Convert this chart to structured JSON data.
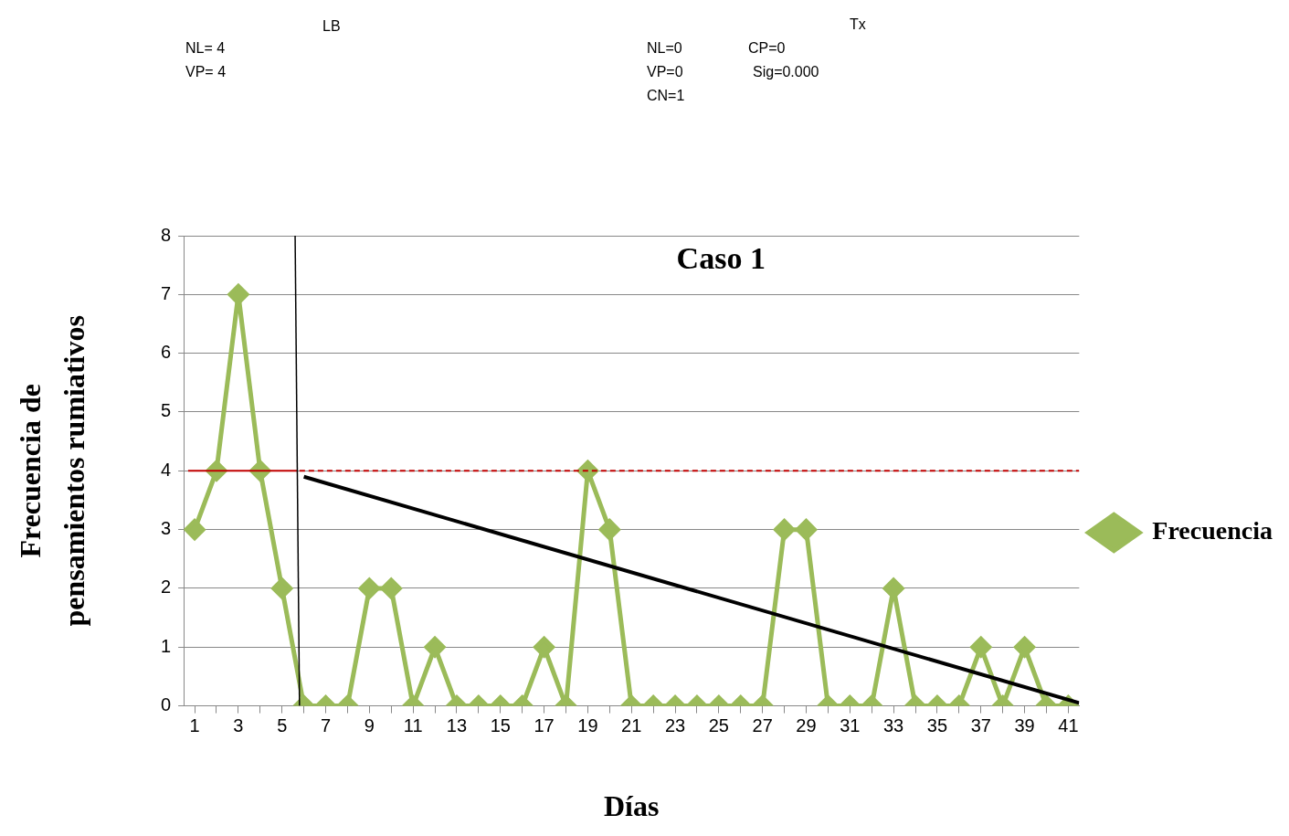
{
  "chart_data": {
    "type": "line",
    "title": "Caso 1",
    "xlabel": "Días",
    "ylabel": "Frecuencia de pensamientos rumiativos",
    "annotations": [
      "LB",
      "NL= 4",
      "VP= 4",
      "Tx",
      "NL=0",
      "CP=0",
      "VP=0",
      "Sig=0.000",
      "CN=1"
    ],
    "x": [
      1,
      2,
      3,
      4,
      5,
      6,
      7,
      8,
      9,
      10,
      11,
      12,
      13,
      14,
      15,
      16,
      17,
      18,
      19,
      20,
      21,
      22,
      23,
      24,
      25,
      26,
      27,
      28,
      29,
      30,
      31,
      32,
      33,
      34,
      35,
      36,
      37,
      38,
      39,
      40,
      41
    ],
    "series": [
      {
        "name": "Frecuencia",
        "color": "#9bbb59",
        "marker": "diamond",
        "values": [
          3,
          4,
          7,
          4,
          2,
          0,
          0,
          0,
          2,
          2,
          0,
          1,
          0,
          0,
          0,
          0,
          1,
          0,
          4,
          3,
          0,
          0,
          0,
          0,
          0,
          0,
          0,
          3,
          3,
          0,
          0,
          0,
          2,
          0,
          0,
          0,
          1,
          0,
          1,
          0,
          0
        ]
      },
      {
        "type": "line",
        "color": "#000000",
        "x": [
          5.6,
          5.8
        ],
        "values": [
          8,
          0
        ],
        "line_style": "solid"
      },
      {
        "type": "line",
        "color": "#c00000",
        "x": [
          0.7,
          5.7
        ],
        "values": [
          4,
          4
        ],
        "line_style": "solid"
      },
      {
        "type": "line",
        "color": "#c00000",
        "x": [
          5.8,
          41.5
        ],
        "values": [
          4,
          4
        ],
        "line_style": "dashed"
      },
      {
        "type": "line",
        "color": "#000000",
        "x": [
          6,
          41.5
        ],
        "values": [
          3.9,
          0.05
        ],
        "line_style": "solid"
      }
    ],
    "xlim": [
      0.5,
      41.5
    ],
    "xticks": [
      1,
      {
        "value": 2,
        "label": null
      },
      3,
      {
        "value": 4,
        "label": null
      },
      5,
      {
        "value": 6,
        "label": null
      },
      7,
      {
        "value": 8,
        "label": null
      },
      9,
      {
        "value": 10,
        "label": null
      },
      11,
      {
        "value": 12,
        "label": null
      },
      13,
      {
        "value": 14,
        "label": null
      },
      15,
      {
        "value": 16,
        "label": null
      },
      17,
      {
        "value": 18,
        "label": null
      },
      19,
      {
        "value": 20,
        "label": null
      },
      21,
      {
        "value": 22,
        "label": null
      },
      23,
      {
        "value": 24,
        "label": null
      },
      25,
      {
        "value": 26,
        "label": null
      },
      27,
      {
        "value": 28,
        "label": null
      },
      29,
      {
        "value": 30,
        "label": null
      },
      31,
      {
        "value": 32,
        "label": null
      },
      33,
      {
        "value": 34,
        "label": null
      },
      35,
      {
        "value": 36,
        "label": null
      },
      37,
      {
        "value": 38,
        "label": null
      },
      39,
      {
        "value": 40,
        "label": null
      },
      41
    ],
    "ylim": [
      0,
      8
    ],
    "yticks": [
      0,
      1,
      2,
      3,
      4,
      5,
      6,
      7,
      8
    ],
    "grid": "y",
    "legend": "right"
  }
}
